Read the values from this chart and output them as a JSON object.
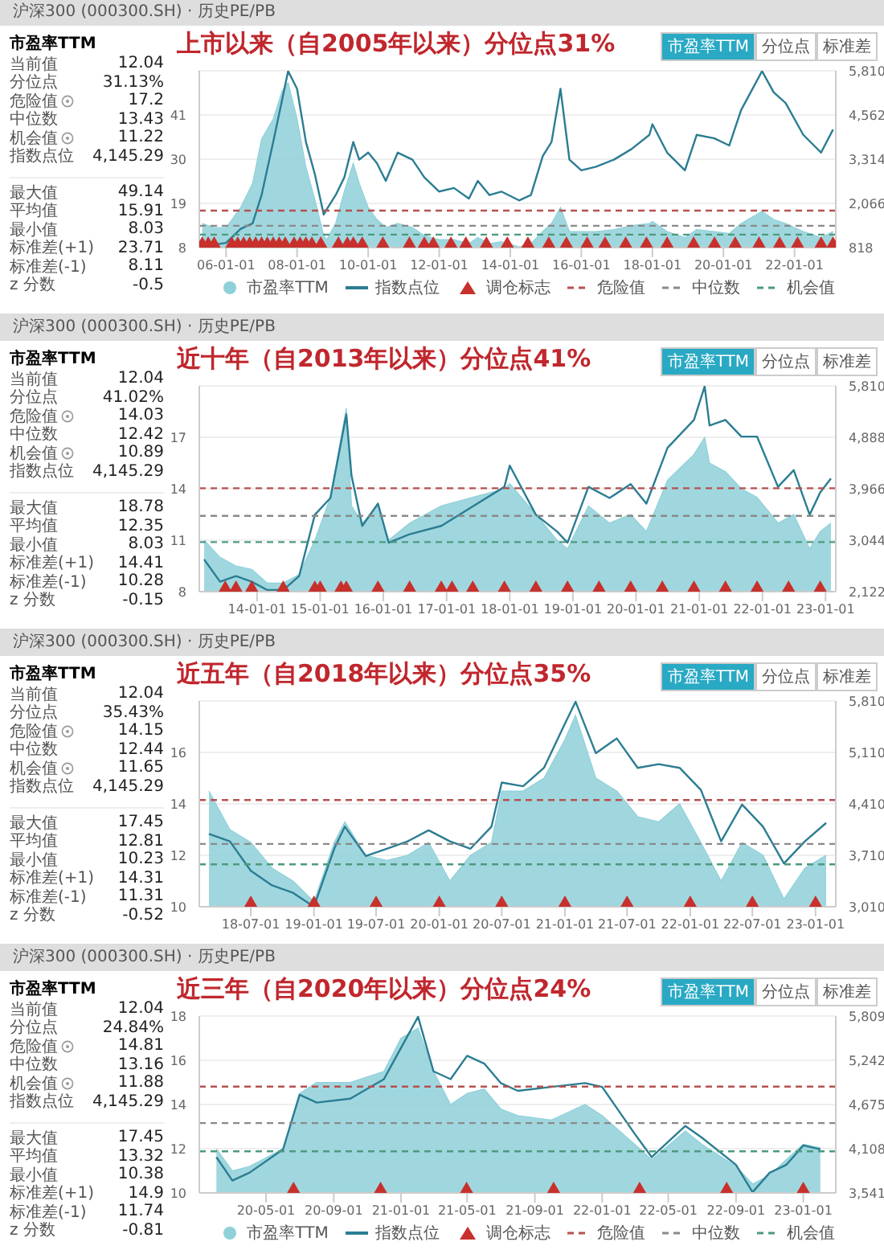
{
  "chart_data": [
    {
      "type": "area",
      "subtitle": "沪深300 (000300.SH) · 历史PE/PB",
      "title": "上市以来（自2005年以来）分位点31%",
      "annotations": [
        "市盈率TTM",
        "当前值 12.04",
        "分位点 31.13%",
        "危险值 17.2",
        "中位数 13.43",
        "机会值 11.22",
        "指数点位 4,145.29",
        "最大值 49.14",
        "平均值 15.91",
        "最小值 8.03",
        "标准差(+1) 23.71",
        "标准差(-1) 8.11",
        "z 分数 -0.5",
        "市盈率TTM",
        "分位点",
        "标准差"
      ],
      "xlim": [
        "2005-04",
        "2023-03"
      ],
      "xticks": [
        {
          "value": "2006-01-01",
          "label": "06-01-01"
        },
        {
          "value": "2008-01-01",
          "label": "08-01-01"
        },
        {
          "value": "2010-01-01",
          "label": "10-01-01"
        },
        {
          "value": "2012-01-01",
          "label": "12-01-01"
        },
        {
          "value": "2014-01-01",
          "label": "14-01-01"
        },
        {
          "value": "2016-01-01",
          "label": "16-01-01"
        },
        {
          "value": "2018-01-01",
          "label": "18-01-01"
        },
        {
          "value": "2020-01-01",
          "label": "20-01-01"
        },
        {
          "value": "2022-01-01",
          "label": "22-01-01"
        }
      ],
      "ylim": [
        8,
        52
      ],
      "yticks": [
        8,
        19,
        30,
        41,
        {
          "value": 52,
          "label": null
        }
      ],
      "y2lim": [
        818,
        5810
      ],
      "y2ticks": [
        {
          "value": 818,
          "label": "818"
        },
        {
          "value": 2066,
          "label": "2,066"
        },
        {
          "value": 3314,
          "label": "3,314"
        },
        {
          "value": 4562,
          "label": "4,562"
        },
        {
          "value": 5810,
          "label": "5,810"
        }
      ],
      "grid": "y",
      "legend": "bottom",
      "ref_lines": [
        {
          "axis": "y",
          "value": 17.2,
          "label": "危险值",
          "color": "#b5514f",
          "line_style": "dashed"
        },
        {
          "axis": "y",
          "value": 13.43,
          "label": "中位数",
          "color": "#8a8a8a",
          "line_style": "dashed"
        },
        {
          "axis": "y",
          "value": 11.22,
          "label": "机会值",
          "color": "#4d9a7e",
          "line_style": "dashed"
        }
      ],
      "series": [
        {
          "name": "市盈率TTM",
          "type": "area",
          "color": "#8fd0d9",
          "x": [
            "2005-05",
            "2005-09",
            "2006-01",
            "2006-06",
            "2006-10",
            "2007-01",
            "2007-05",
            "2007-08",
            "2007-10",
            "2008-01",
            "2008-04",
            "2008-07",
            "2008-10",
            "2008-11",
            "2009-02",
            "2009-05",
            "2009-08",
            "2009-10",
            "2010-01",
            "2010-04",
            "2010-07",
            "2010-11",
            "2011-04",
            "2011-08",
            "2012-01",
            "2012-06",
            "2012-11",
            "2013-02",
            "2013-06",
            "2013-10",
            "2014-04",
            "2014-08",
            "2014-12",
            "2015-03",
            "2015-06",
            "2015-09",
            "2016-01",
            "2016-06",
            "2016-12",
            "2017-06",
            "2017-12",
            "2018-01",
            "2018-06",
            "2018-12",
            "2019-04",
            "2019-10",
            "2020-03",
            "2020-07",
            "2021-02",
            "2021-06",
            "2021-10",
            "2022-04",
            "2022-10",
            "2023-02"
          ],
          "values": [
            14,
            13,
            13,
            18,
            24,
            35,
            40,
            47,
            49,
            40,
            28,
            20,
            11,
            10,
            14,
            22,
            29,
            24,
            18,
            15,
            13,
            14,
            13,
            11,
            10,
            10,
            9,
            10.5,
            9,
            9.5,
            8.2,
            9,
            12,
            14,
            18,
            12,
            12,
            12,
            12.5,
            13.5,
            14,
            14.5,
            12,
            10.5,
            12.5,
            12,
            11.5,
            14,
            17,
            15,
            14,
            12,
            10.5,
            12
          ]
        },
        {
          "name": "指数点位",
          "type": "line",
          "axis": "y2",
          "color": "#2b7d92",
          "x": [
            "2005-05",
            "2005-09",
            "2006-01",
            "2006-06",
            "2006-10",
            "2007-01",
            "2007-05",
            "2007-08",
            "2007-10",
            "2008-01",
            "2008-04",
            "2008-07",
            "2008-10",
            "2008-11",
            "2009-02",
            "2009-05",
            "2009-08",
            "2009-10",
            "2010-01",
            "2010-04",
            "2010-07",
            "2010-11",
            "2011-04",
            "2011-08",
            "2012-01",
            "2012-06",
            "2012-11",
            "2013-02",
            "2013-06",
            "2013-10",
            "2014-04",
            "2014-08",
            "2014-12",
            "2015-03",
            "2015-06",
            "2015-09",
            "2016-01",
            "2016-06",
            "2016-12",
            "2017-06",
            "2017-12",
            "2018-01",
            "2018-06",
            "2018-12",
            "2019-04",
            "2019-10",
            "2020-03",
            "2020-07",
            "2021-02",
            "2021-06",
            "2021-10",
            "2022-04",
            "2022-10",
            "2023-02"
          ],
          "values": [
            900,
            900,
            950,
            1350,
            1500,
            2300,
            3800,
            5000,
            5800,
            5300,
            3800,
            2900,
            1750,
            1900,
            2300,
            2800,
            3800,
            3300,
            3500,
            3200,
            2700,
            3500,
            3300,
            2800,
            2400,
            2500,
            2200,
            2700,
            2300,
            2400,
            2150,
            2300,
            3400,
            3800,
            5300,
            3300,
            3000,
            3100,
            3300,
            3600,
            4000,
            4300,
            3500,
            3000,
            4000,
            3900,
            3700,
            4700,
            5800,
            5200,
            4900,
            4000,
            3500,
            4150
          ]
        },
        {
          "name": "调仓标志",
          "type": "scatter",
          "marker": "triangle",
          "color": "#c8302c",
          "x": [
            "2005-05",
            "2005-07",
            "2005-09",
            "2006-03",
            "2006-05",
            "2006-07",
            "2006-09",
            "2006-11",
            "2007-01",
            "2007-03",
            "2007-05",
            "2007-07",
            "2007-09",
            "2007-12",
            "2008-02",
            "2008-04",
            "2008-06",
            "2008-09",
            "2009-03",
            "2009-06",
            "2009-08",
            "2009-11",
            "2010-06",
            "2011-03",
            "2011-08",
            "2011-11",
            "2012-05",
            "2012-10",
            "2013-05",
            "2013-12",
            "2014-07",
            "2015-02",
            "2015-08",
            "2016-03",
            "2016-09",
            "2017-04",
            "2017-11",
            "2018-06",
            "2019-03",
            "2019-10",
            "2020-05",
            "2021-01",
            "2021-08",
            "2022-02",
            "2022-10",
            "2023-02"
          ],
          "values": [
            8,
            8,
            8,
            8,
            8,
            8,
            8,
            8,
            8,
            8,
            8,
            8,
            8,
            8,
            8,
            8,
            8,
            8,
            8,
            8,
            8,
            8,
            8,
            8,
            8,
            8,
            8,
            8,
            8,
            8,
            8,
            8,
            8,
            8,
            8,
            8,
            8,
            8,
            8,
            8,
            8,
            8,
            8,
            8,
            8,
            8
          ]
        }
      ]
    },
    {
      "type": "area",
      "subtitle": "沪深300 (000300.SH) · 历史PE/PB",
      "title": "近十年（自2013年以来）分位点41%",
      "annotations": [
        "市盈率TTM",
        "当前值 12.04",
        "分位点 41.02%",
        "危险值 14.03",
        "中位数 12.42",
        "机会值 10.89",
        "指数点位 4,145.29",
        "最大值 18.78",
        "平均值 12.35",
        "最小值 8.03",
        "标准差(+1) 14.41",
        "标准差(-1) 10.28",
        "z 分数 -0.15",
        "市盈率TTM",
        "分位点",
        "标准差"
      ],
      "xlim": [
        "2013-02",
        "2023-03"
      ],
      "xticks": [
        {
          "value": "2014-01-01",
          "label": "14-01-01"
        },
        {
          "value": "2015-01-01",
          "label": "15-01-01"
        },
        {
          "value": "2016-01-01",
          "label": "16-01-01"
        },
        {
          "value": "2017-01-01",
          "label": "17-01-01"
        },
        {
          "value": "2018-01-01",
          "label": "18-01-01"
        },
        {
          "value": "2019-01-01",
          "label": "19-01-01"
        },
        {
          "value": "2020-01-01",
          "label": "20-01-01"
        },
        {
          "value": "2021-01-01",
          "label": "21-01-01"
        },
        {
          "value": "2022-01-01",
          "label": "22-01-01"
        },
        {
          "value": "2023-01-01",
          "label": "23-01-01"
        }
      ],
      "ylim": [
        8,
        20
      ],
      "yticks": [
        8,
        11,
        14,
        17,
        {
          "value": 20,
          "label": null
        }
      ],
      "y2lim": [
        2122,
        5810
      ],
      "y2ticks": [
        {
          "value": 2122,
          "label": "2,122"
        },
        {
          "value": 3044,
          "label": "3,044"
        },
        {
          "value": 3966,
          "label": "3,966"
        },
        {
          "value": 4888,
          "label": "4,888"
        },
        {
          "value": 5810,
          "label": "5,810"
        }
      ],
      "grid": "y",
      "ref_lines": [
        {
          "axis": "y",
          "value": 14.03,
          "color": "#b5514f",
          "line_style": "dashed"
        },
        {
          "axis": "y",
          "value": 12.42,
          "color": "#8a8a8a",
          "line_style": "dashed"
        },
        {
          "axis": "y",
          "value": 10.89,
          "color": "#4d9a7e",
          "line_style": "dashed"
        }
      ],
      "series": [
        {
          "type": "area",
          "color": "#8fd0d9",
          "x": [
            "2013-03",
            "2013-06",
            "2013-09",
            "2013-12",
            "2014-03",
            "2014-06",
            "2014-09",
            "2014-12",
            "2015-03",
            "2015-06",
            "2015-07",
            "2015-09",
            "2015-12",
            "2016-02",
            "2016-06",
            "2016-12",
            "2017-06",
            "2017-12",
            "2018-01",
            "2018-06",
            "2018-10",
            "2018-12",
            "2019-04",
            "2019-08",
            "2019-12",
            "2020-03",
            "2020-07",
            "2020-12",
            "2021-02",
            "2021-03",
            "2021-06",
            "2021-09",
            "2021-12",
            "2022-04",
            "2022-07",
            "2022-10",
            "2022-12",
            "2023-02"
          ],
          "values": [
            11,
            10,
            9.5,
            9.3,
            8.5,
            8.5,
            9,
            11,
            13.5,
            18.7,
            13,
            12,
            13,
            11,
            12,
            13,
            13.5,
            14,
            14.3,
            12.5,
            11,
            10.5,
            13,
            12,
            12.5,
            11.5,
            14.5,
            16,
            17,
            15.5,
            15,
            14,
            13.5,
            12,
            12.5,
            10.5,
            11.5,
            12
          ]
        },
        {
          "type": "line",
          "axis": "y2",
          "color": "#2b7d92",
          "x": [
            "2013-03",
            "2013-06",
            "2013-09",
            "2013-12",
            "2014-03",
            "2014-06",
            "2014-09",
            "2014-12",
            "2015-03",
            "2015-06",
            "2015-07",
            "2015-09",
            "2015-12",
            "2016-02",
            "2016-06",
            "2016-12",
            "2017-06",
            "2017-12",
            "2018-01",
            "2018-06",
            "2018-10",
            "2018-12",
            "2019-04",
            "2019-08",
            "2019-12",
            "2020-03",
            "2020-07",
            "2020-12",
            "2021-02",
            "2021-03",
            "2021-06",
            "2021-09",
            "2021-12",
            "2022-04",
            "2022-07",
            "2022-10",
            "2022-12",
            "2023-02"
          ],
          "values": [
            2700,
            2300,
            2400,
            2300,
            2150,
            2150,
            2400,
            3500,
            3800,
            5300,
            4200,
            3300,
            3700,
            3000,
            3150,
            3300,
            3650,
            4000,
            4380,
            3500,
            3200,
            3000,
            4000,
            3800,
            4050,
            3700,
            4700,
            5200,
            5800,
            5100,
            5200,
            4900,
            4900,
            4000,
            4300,
            3500,
            3900,
            4150
          ]
        },
        {
          "type": "scatter",
          "marker": "triangle",
          "color": "#c8302c",
          "x": [
            "2013-07",
            "2013-09",
            "2013-12",
            "2014-06",
            "2014-12",
            "2015-01",
            "2015-05",
            "2015-06",
            "2015-12",
            "2016-06",
            "2016-12",
            "2017-02",
            "2017-06",
            "2017-12",
            "2018-06",
            "2018-12",
            "2019-06",
            "2019-12",
            "2020-06",
            "2020-12",
            "2021-06",
            "2021-12",
            "2022-06",
            "2022-12"
          ],
          "values": [
            8,
            8,
            8,
            8,
            8,
            8,
            8,
            8,
            8,
            8,
            8,
            8,
            8,
            8,
            8,
            8,
            8,
            8,
            8,
            8,
            8,
            8,
            8,
            8
          ]
        }
      ]
    },
    {
      "type": "area",
      "subtitle": "沪深300 (000300.SH) · 历史PE/PB",
      "title": "近五年（自2018年以来）分位点35%",
      "annotations": [
        "市盈率TTM",
        "当前值 12.04",
        "分位点 35.43%",
        "危险值 14.15",
        "中位数 12.44",
        "机会值 11.65",
        "指数点位 4,145.29",
        "最大值 17.45",
        "平均值 12.81",
        "最小值 10.23",
        "标准差(+1) 14.31",
        "标准差(-1) 11.31",
        "z 分数 -0.52",
        "市盈率TTM",
        "分位点",
        "标准差"
      ],
      "xlim": [
        "2018-02",
        "2023-03"
      ],
      "xticks": [
        {
          "value": "2018-07-01",
          "label": "18-07-01"
        },
        {
          "value": "2019-01-01",
          "label": "19-01-01"
        },
        {
          "value": "2019-07-01",
          "label": "19-07-01"
        },
        {
          "value": "2020-01-01",
          "label": "20-01-01"
        },
        {
          "value": "2020-07-01",
          "label": "20-07-01"
        },
        {
          "value": "2021-01-01",
          "label": "21-01-01"
        },
        {
          "value": "2021-07-01",
          "label": "21-07-01"
        },
        {
          "value": "2022-01-01",
          "label": "22-01-01"
        },
        {
          "value": "2022-07-01",
          "label": "22-07-01"
        },
        {
          "value": "2023-01-01",
          "label": "23-01-01"
        }
      ],
      "ylim": [
        10,
        18
      ],
      "yticks": [
        10,
        12,
        14,
        16,
        {
          "value": 18,
          "label": null
        }
      ],
      "y2lim": [
        3010,
        5810
      ],
      "y2ticks": [
        {
          "value": 3010,
          "label": "3,010"
        },
        {
          "value": 3710,
          "label": "3,710"
        },
        {
          "value": 4410,
          "label": "4,410"
        },
        {
          "value": 5110,
          "label": "5,110"
        },
        {
          "value": 5810,
          "label": "5,810"
        }
      ],
      "grid": "y",
      "ref_lines": [
        {
          "axis": "y",
          "value": 14.15,
          "color": "#b5514f",
          "line_style": "dashed"
        },
        {
          "axis": "y",
          "value": 12.44,
          "color": "#8a8a8a",
          "line_style": "dashed"
        },
        {
          "axis": "y",
          "value": 11.65,
          "color": "#4d9a7e",
          "line_style": "dashed"
        }
      ],
      "series": [
        {
          "type": "area",
          "color": "#8fd0d9",
          "x": [
            "2018-03",
            "2018-05",
            "2018-07",
            "2018-09",
            "2018-11",
            "2019-01",
            "2019-03",
            "2019-04",
            "2019-06",
            "2019-08",
            "2019-10",
            "2019-12",
            "2020-02",
            "2020-04",
            "2020-06",
            "2020-07",
            "2020-09",
            "2020-11",
            "2021-01",
            "2021-02",
            "2021-04",
            "2021-06",
            "2021-08",
            "2021-10",
            "2021-12",
            "2022-02",
            "2022-04",
            "2022-06",
            "2022-08",
            "2022-10",
            "2022-12",
            "2023-02"
          ],
          "values": [
            14.5,
            13,
            12.5,
            11.5,
            11,
            10.2,
            12.5,
            13.3,
            12,
            11.8,
            12,
            12.5,
            11,
            12,
            12.5,
            14.5,
            14.5,
            15,
            16.5,
            17.45,
            15,
            14.5,
            13.5,
            13.3,
            14,
            12.5,
            11,
            12.5,
            12,
            10.3,
            11.5,
            12
          ]
        },
        {
          "type": "line",
          "axis": "y2",
          "color": "#2b7d92",
          "x": [
            "2018-03",
            "2018-05",
            "2018-07",
            "2018-09",
            "2018-11",
            "2019-01",
            "2019-03",
            "2019-04",
            "2019-06",
            "2019-08",
            "2019-10",
            "2019-12",
            "2020-02",
            "2020-04",
            "2020-06",
            "2020-07",
            "2020-09",
            "2020-11",
            "2021-01",
            "2021-02",
            "2021-04",
            "2021-06",
            "2021-08",
            "2021-10",
            "2021-12",
            "2022-02",
            "2022-04",
            "2022-06",
            "2022-08",
            "2022-10",
            "2022-12",
            "2023-02"
          ],
          "values": [
            4000,
            3900,
            3500,
            3300,
            3200,
            3010,
            3800,
            4100,
            3700,
            3800,
            3900,
            4050,
            3900,
            3800,
            4100,
            4700,
            4650,
            4900,
            5500,
            5800,
            5100,
            5300,
            4900,
            4950,
            4900,
            4600,
            3900,
            4400,
            4100,
            3600,
            3900,
            4150
          ]
        },
        {
          "type": "scatter",
          "marker": "triangle",
          "color": "#c8302c",
          "x": [
            "2018-07-01",
            "2019-01-01",
            "2019-07-01",
            "2020-01-01",
            "2020-07-01",
            "2021-01-01",
            "2021-07-01",
            "2022-01-01",
            "2022-07-01",
            "2023-01-01"
          ],
          "values": [
            10,
            10,
            10,
            10,
            10,
            10,
            10,
            10,
            10,
            10
          ]
        }
      ]
    },
    {
      "type": "area",
      "subtitle": "沪深300 (000300.SH) · 历史PE/PB",
      "title": "近三年（自2020年以来）分位点24%",
      "annotations": [
        "市盈率TTM",
        "当前值 12.04",
        "分位点 24.84%",
        "危险值 14.81",
        "中位数 13.16",
        "机会值 11.88",
        "指数点位 4,145.29",
        "最大值 17.45",
        "平均值 13.32",
        "最小值 10.38",
        "标准差(+1) 14.9",
        "标准差(-1) 11.74",
        "z 分数 -0.81",
        "市盈率TTM",
        "分位点",
        "标准差"
      ],
      "xlim": [
        "2020-01",
        "2023-03"
      ],
      "xticks": [
        {
          "value": "2020-05-01",
          "label": "20-05-01"
        },
        {
          "value": "2020-09-01",
          "label": "20-09-01"
        },
        {
          "value": "2021-01-01",
          "label": "21-01-01"
        },
        {
          "value": "2021-05-01",
          "label": "21-05-01"
        },
        {
          "value": "2021-09-01",
          "label": "21-09-01"
        },
        {
          "value": "2022-01-01",
          "label": "22-01-01"
        },
        {
          "value": "2022-05-01",
          "label": "22-05-01"
        },
        {
          "value": "2022-09-01",
          "label": "22-09-01"
        },
        {
          "value": "2023-01-01",
          "label": "23-01-01"
        }
      ],
      "ylim": [
        10,
        18
      ],
      "yticks": [
        10,
        12,
        14,
        16,
        18
      ],
      "y2lim": [
        3541,
        5809
      ],
      "y2ticks": [
        {
          "value": 3541,
          "label": "3,541"
        },
        {
          "value": 4108,
          "label": "4,108"
        },
        {
          "value": 4675,
          "label": "4,675"
        },
        {
          "value": 5242,
          "label": "5,242"
        },
        {
          "value": 5809,
          "label": "5,809"
        }
      ],
      "grid": "y",
      "legend": "bottom",
      "ref_lines": [
        {
          "axis": "y",
          "value": 14.81,
          "label": "危险值",
          "color": "#b5514f",
          "line_style": "dashed"
        },
        {
          "axis": "y",
          "value": 13.16,
          "label": "中位数",
          "color": "#8a8a8a",
          "line_style": "dashed"
        },
        {
          "axis": "y",
          "value": 11.88,
          "label": "机会值",
          "color": "#4d9a7e",
          "line_style": "dashed"
        }
      ],
      "series": [
        {
          "name": "市盈率TTM",
          "type": "area",
          "color": "#8fd0d9",
          "x": [
            "2020-02",
            "2020-03",
            "2020-04",
            "2020-06",
            "2020-07",
            "2020-08",
            "2020-10",
            "2020-12",
            "2021-01",
            "2021-02",
            "2021-03",
            "2021-04",
            "2021-05",
            "2021-06",
            "2021-07",
            "2021-08",
            "2021-10",
            "2021-12",
            "2022-01",
            "2022-03",
            "2022-04",
            "2022-06",
            "2022-07",
            "2022-09",
            "2022-10",
            "2022-11",
            "2022-12",
            "2023-01",
            "2023-02"
          ],
          "values": [
            12,
            11,
            11.2,
            12,
            14.5,
            15,
            15,
            15.5,
            17,
            17.45,
            15.5,
            14,
            14.5,
            14.7,
            13.8,
            13.5,
            13.3,
            14,
            13.5,
            12.2,
            11.5,
            12.8,
            12.2,
            11.2,
            10.4,
            10.8,
            11.5,
            12.2,
            12.04
          ]
        },
        {
          "name": "指数点位",
          "type": "line",
          "axis": "y2",
          "color": "#2b7d92",
          "x": [
            "2020-02",
            "2020-03",
            "2020-04",
            "2020-06",
            "2020-07",
            "2020-08",
            "2020-10",
            "2020-12",
            "2021-01",
            "2021-02",
            "2021-03",
            "2021-04",
            "2021-05",
            "2021-06",
            "2021-07",
            "2021-08",
            "2021-10",
            "2021-12",
            "2022-01",
            "2022-03",
            "2022-04",
            "2022-06",
            "2022-07",
            "2022-09",
            "2022-10",
            "2022-11",
            "2022-12",
            "2023-01",
            "2023-02"
          ],
          "values": [
            4000,
            3700,
            3800,
            4100,
            4800,
            4700,
            4750,
            5000,
            5400,
            5800,
            5100,
            5000,
            5300,
            5200,
            4950,
            4850,
            4900,
            4950,
            4900,
            4300,
            4000,
            4400,
            4250,
            3900,
            3550,
            3800,
            3900,
            4150,
            4100
          ]
        },
        {
          "name": "调仓标志",
          "type": "scatter",
          "marker": "triangle",
          "color": "#c8302c",
          "x": [
            "2020-06-20",
            "2020-11-25",
            "2021-04-30",
            "2021-10-05",
            "2022-03-10",
            "2022-08-15",
            "2023-01-01"
          ],
          "values": [
            10,
            10,
            10,
            10,
            10,
            10,
            10
          ]
        }
      ]
    }
  ]
}
